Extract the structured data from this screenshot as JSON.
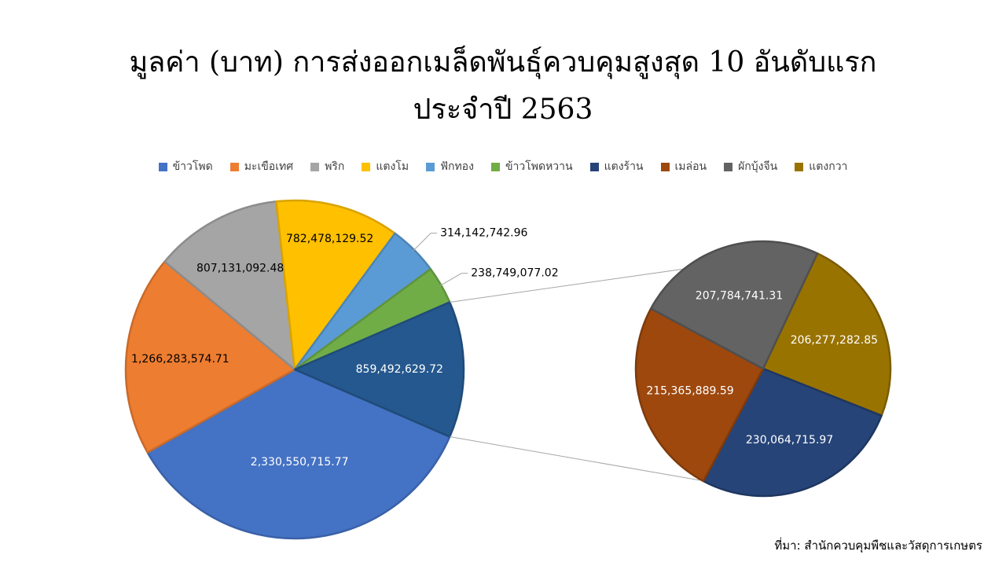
{
  "title_line1": "มูลค่า (บาท) การส่งออกเมล็ดพันธุ์ควบคุมสูงสุด 10 อันดับแรก",
  "title_line2": "ประจำปี 2563",
  "source": "ที่มา: สำนักควบคุมพืชและวัสดุการเกษตร",
  "chart_data": {
    "type": "pie",
    "subtype": "pie-of-pie",
    "legend_position": "top",
    "categories": [
      "ข้าวโพด",
      "มะเขือเทศ",
      "พริก",
      "แตงโม",
      "ฟักทอง",
      "ข้าวโพดหวาน",
      "แตงร้าน",
      "เมล่อน",
      "ผักบุ้งจีน",
      "แตงกวา"
    ],
    "values": [
      2330550715.77,
      1266283574.71,
      807131092.48,
      782478129.52,
      314142742.96,
      238749077.02,
      230064715.97,
      215365889.59,
      207784741.31,
      206277282.85
    ],
    "data_labels": [
      "2,330,550,715.77",
      "1,266,283,574.71",
      "807,131,092.48",
      "782,478,129.52",
      "314,142,742.96",
      "238,749,077.02",
      "230,064,715.97",
      "215,365,889.59",
      "207,784,741.31",
      "206,277,282.85"
    ],
    "colors": [
      "#4472C4",
      "#ED7D31",
      "#A5A5A5",
      "#FFC000",
      "#5B9BD5",
      "#70AD47",
      "#264478",
      "#9E480E",
      "#636363",
      "#997300"
    ],
    "secondary_pie_categories": [
      "แตงร้าน",
      "เมล่อน",
      "ผักบุ้งจีน",
      "แตงกวา"
    ],
    "secondary_pie_total": 859492629.72,
    "other_label": "859,492,629.72"
  }
}
